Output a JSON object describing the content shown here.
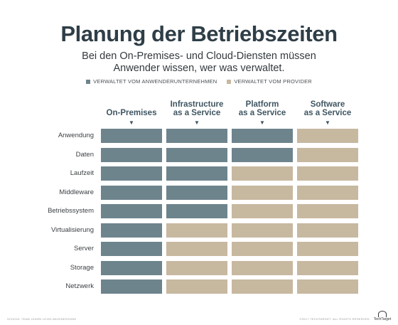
{
  "title": "Planung der Betriebszeiten",
  "subtitle": {
    "line1": "Bei den On-Premises- und Cloud-Diensten müssen",
    "line2": "Anwender wissen, wer was verwaltet."
  },
  "legend": {
    "customer": {
      "label": "VERWALTET VOM ANWENDERUNTERNEHMEN",
      "color": "#6e848d"
    },
    "provider": {
      "label": "VERWALTET VOM PROVIDER",
      "color": "#c7b8a0"
    }
  },
  "columns": [
    {
      "lines": [
        "",
        "On-Premises"
      ],
      "arrow": "▼"
    },
    {
      "lines": [
        "Infrastructure",
        "as a Service"
      ],
      "arrow": "▼"
    },
    {
      "lines": [
        "Platform",
        "as a Service"
      ],
      "arrow": "▼"
    },
    {
      "lines": [
        "Software",
        "as a Service"
      ],
      "arrow": "▼"
    }
  ],
  "rows": [
    {
      "label": "Anwendung",
      "managed_by": [
        "customer",
        "customer",
        "customer",
        "provider"
      ]
    },
    {
      "label": "Daten",
      "managed_by": [
        "customer",
        "customer",
        "customer",
        "provider"
      ]
    },
    {
      "label": "Laufzeit",
      "managed_by": [
        "customer",
        "customer",
        "provider",
        "provider"
      ]
    },
    {
      "label": "Middleware",
      "managed_by": [
        "customer",
        "customer",
        "provider",
        "provider"
      ]
    },
    {
      "label": "Betriebssystem",
      "managed_by": [
        "customer",
        "customer",
        "provider",
        "provider"
      ]
    },
    {
      "label": "Virtualisierung",
      "managed_by": [
        "customer",
        "provider",
        "provider",
        "provider"
      ]
    },
    {
      "label": "Server",
      "managed_by": [
        "customer",
        "provider",
        "provider",
        "provider"
      ]
    },
    {
      "label": "Storage",
      "managed_by": [
        "customer",
        "provider",
        "provider",
        "provider"
      ]
    },
    {
      "label": "Netzwerk",
      "managed_by": [
        "customer",
        "provider",
        "provider",
        "provider"
      ]
    }
  ],
  "footer": {
    "source": "SCHOOL TEAM LEARN LEVEL/BUSINESSONE",
    "copyright": "©2017 TECHTARGET. ALL RIGHTS RESERVED",
    "logo": "TechTarget"
  }
}
